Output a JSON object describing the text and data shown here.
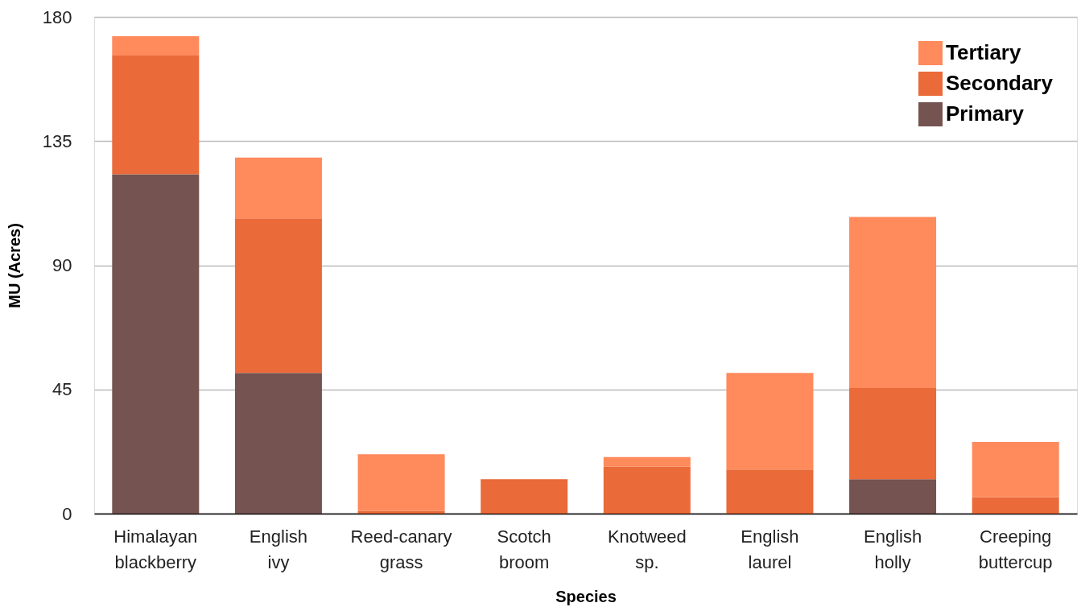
{
  "chart_data": {
    "type": "bar",
    "stacked": true,
    "xlabel": "Species",
    "ylabel": "MU (Acres)",
    "categories": [
      "Himalayan blackberry",
      "English ivy",
      "Reed-canary grass",
      "Scotch broom",
      "Knotweed sp.",
      "English laurel",
      "English holly",
      "Creeping buttercup"
    ],
    "series": [
      {
        "name": "Primary",
        "color": "#745350",
        "values": [
          123,
          51,
          0,
          0,
          0,
          0,
          12.5,
          0
        ]
      },
      {
        "name": "Secondary",
        "color": "#ea6a39",
        "values": [
          43,
          56,
          1,
          12.5,
          17,
          16,
          33,
          6
        ]
      },
      {
        "name": "Tertiary",
        "color": "#ff8a5c",
        "values": [
          7,
          22,
          20.5,
          0,
          3.5,
          35,
          62,
          20
        ]
      }
    ],
    "ylim": [
      0,
      180
    ],
    "yticks": [
      0,
      45,
      90,
      135,
      180
    ],
    "grid": "y",
    "legend": "top right"
  }
}
